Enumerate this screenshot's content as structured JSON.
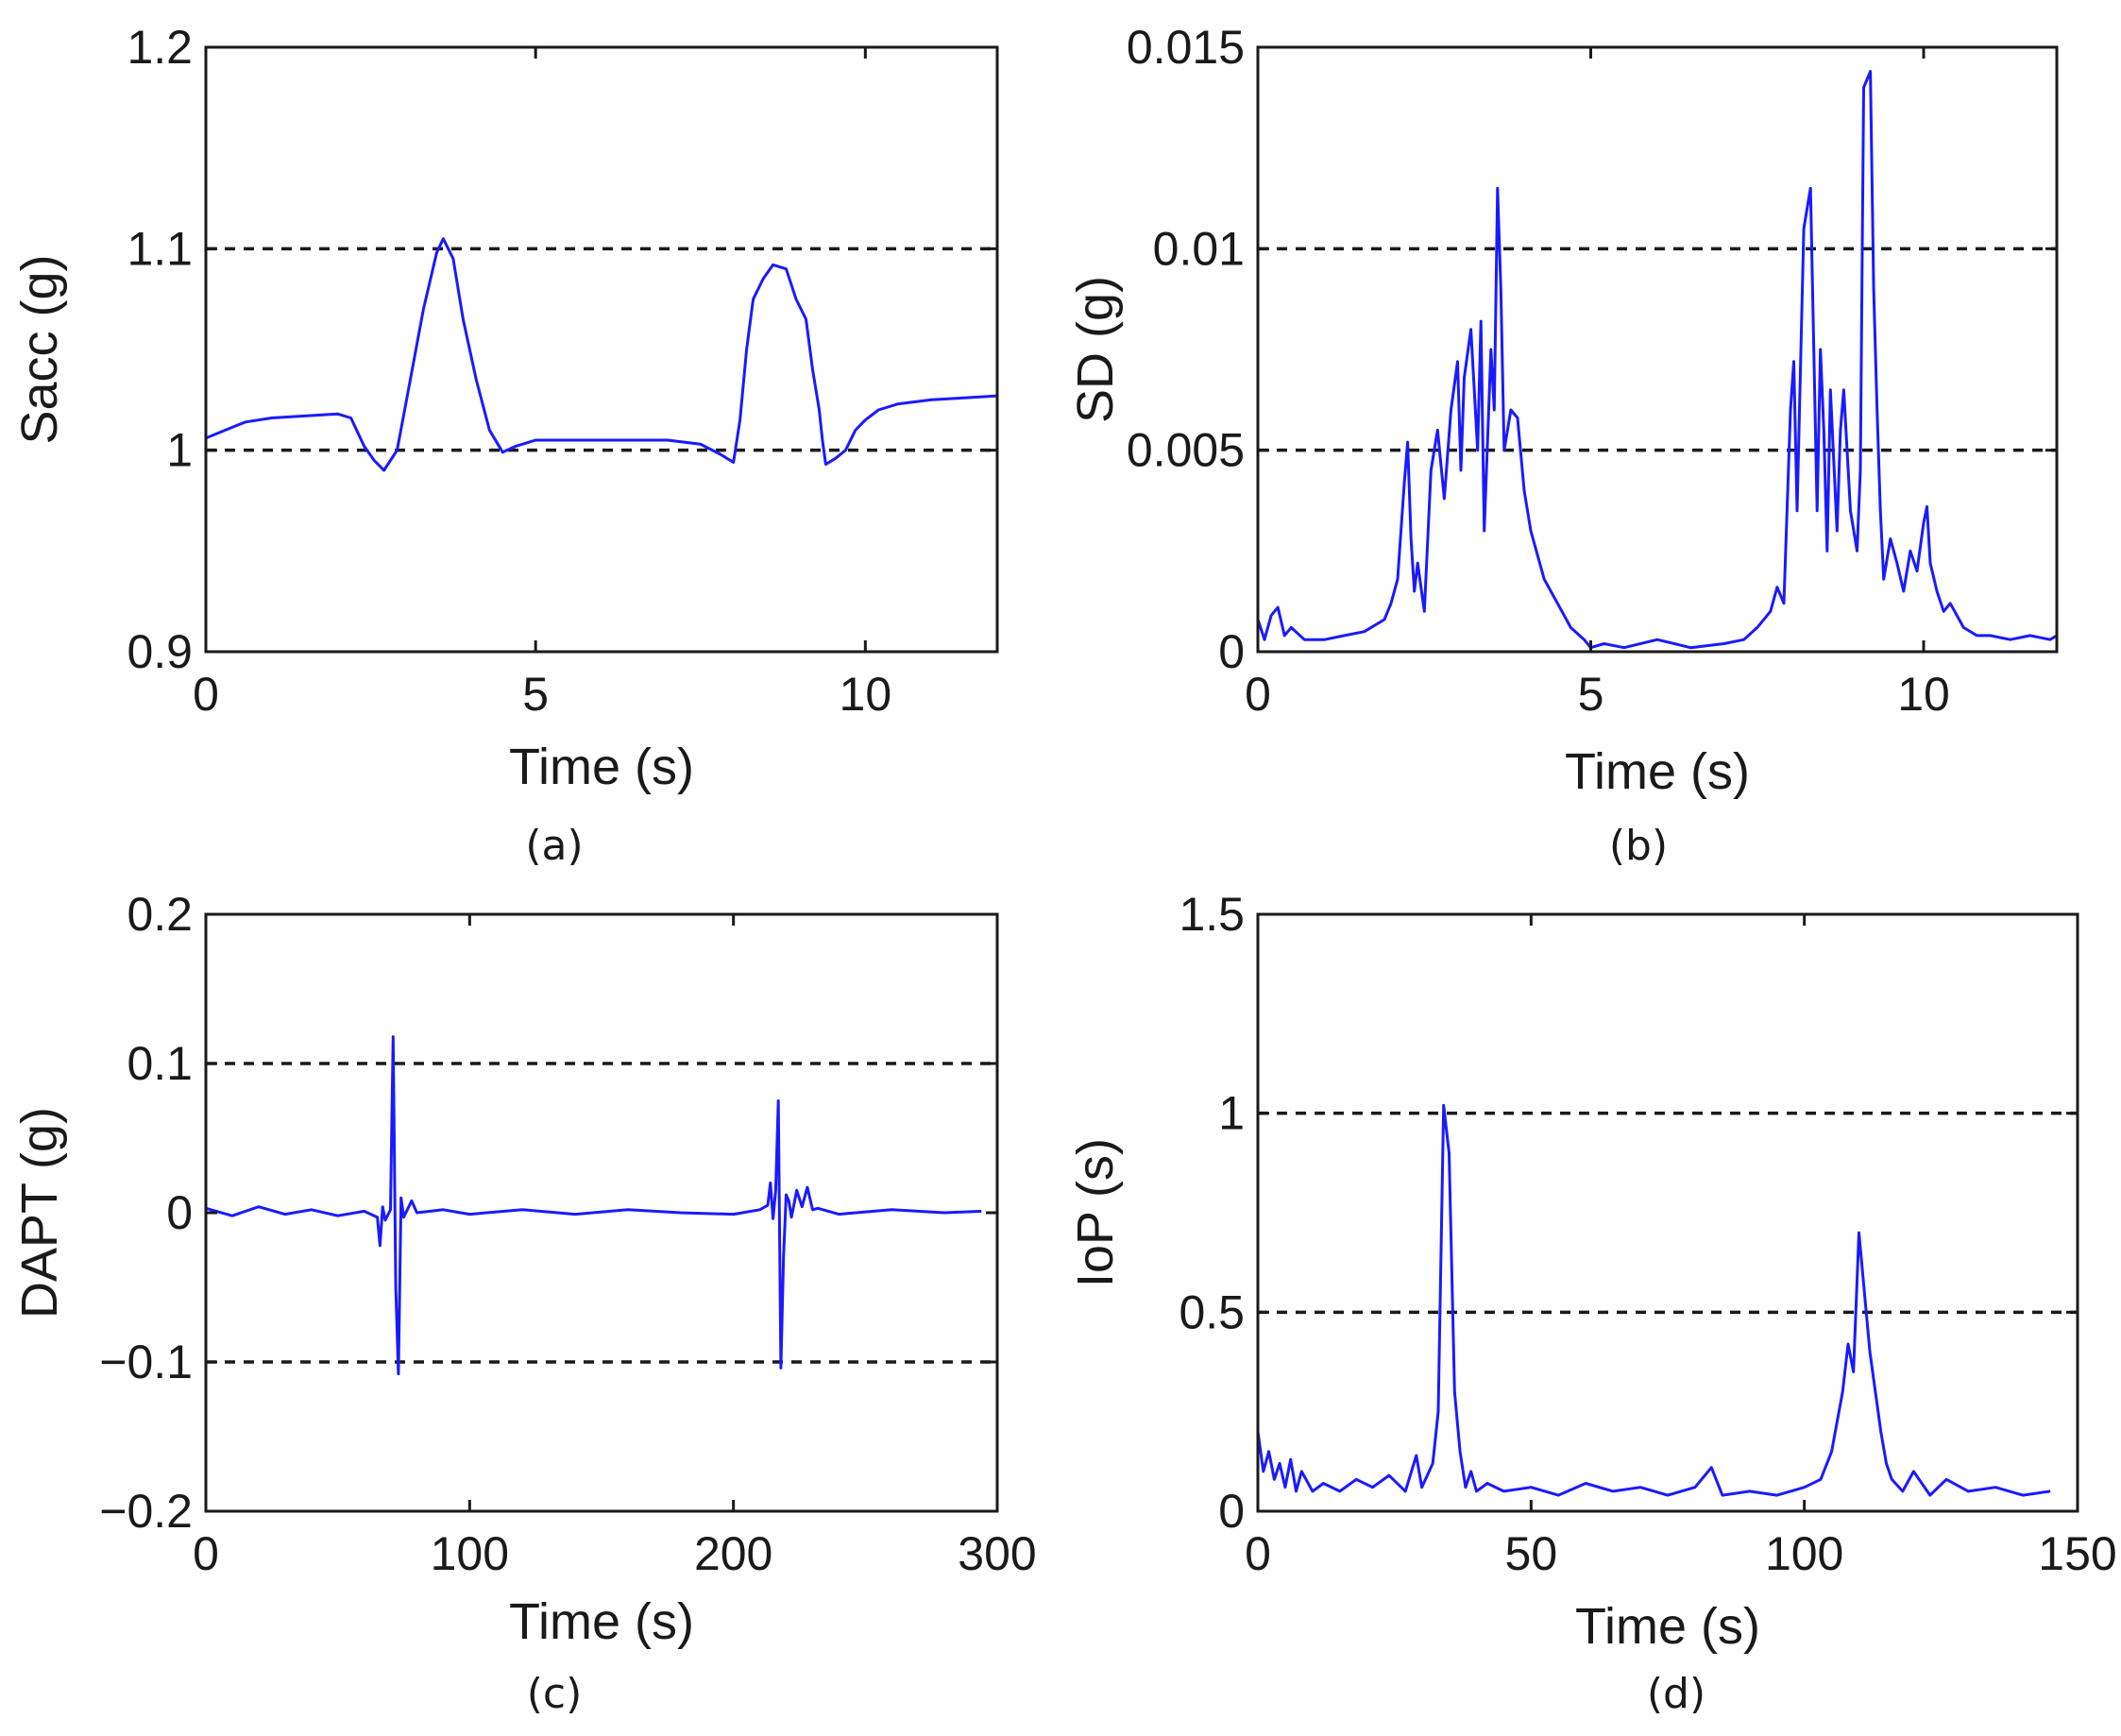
{
  "colors": {
    "line": "#1a1aff",
    "axis": "#1a1a1a",
    "threshold": "#1a1a1a"
  },
  "chart_data": [
    {
      "type": "line",
      "caption": "(a)",
      "xlabel": "Time (s)",
      "ylabel": "Sacc (g)",
      "xlim": [
        0,
        12
      ],
      "ylim": [
        0.9,
        1.2
      ],
      "xticks": [
        0,
        5,
        10
      ],
      "xtick_labels": [
        "0",
        "5",
        "10"
      ],
      "yticks": [
        0.9,
        1.0,
        1.1,
        1.2
      ],
      "ytick_labels": [
        "0.9",
        "1",
        "1.1",
        "1.2"
      ],
      "thresholds": [
        1.0,
        1.1
      ],
      "series": [
        {
          "name": "Sacc",
          "x": [
            0,
            0.3,
            0.6,
            1.0,
            1.5,
            2.0,
            2.2,
            2.4,
            2.55,
            2.7,
            2.9,
            3.1,
            3.3,
            3.5,
            3.6,
            3.75,
            3.9,
            4.1,
            4.3,
            4.5,
            4.7,
            5.0,
            5.5,
            6.0,
            6.5,
            7.0,
            7.5,
            7.8,
            8.0,
            8.1,
            8.2,
            8.3,
            8.45,
            8.6,
            8.8,
            8.95,
            9.1,
            9.2,
            9.3,
            9.35,
            9.4,
            9.55,
            9.7,
            9.85,
            10.0,
            10.2,
            10.5,
            11.0,
            11.5,
            12.0
          ],
          "y": [
            1.006,
            1.01,
            1.014,
            1.016,
            1.017,
            1.018,
            1.016,
            1.002,
            0.995,
            0.99,
            1.0,
            1.035,
            1.07,
            1.098,
            1.105,
            1.095,
            1.065,
            1.035,
            1.01,
            0.999,
            1.002,
            1.005,
            1.005,
            1.005,
            1.005,
            1.005,
            1.003,
            0.998,
            0.994,
            1.015,
            1.05,
            1.075,
            1.085,
            1.092,
            1.09,
            1.075,
            1.065,
            1.04,
            1.02,
            1.005,
            0.993,
            0.996,
            1.0,
            1.01,
            1.015,
            1.02,
            1.023,
            1.025,
            1.026,
            1.027
          ]
        }
      ]
    },
    {
      "type": "line",
      "caption": "(b)",
      "xlabel": "Time (s)",
      "ylabel": "SD (g)",
      "xlim": [
        0,
        12
      ],
      "ylim": [
        0,
        0.015
      ],
      "xticks": [
        0,
        5,
        10
      ],
      "xtick_labels": [
        "0",
        "5",
        "10"
      ],
      "yticks": [
        0,
        0.005,
        0.01,
        0.015
      ],
      "ytick_labels": [
        "0",
        "0.005",
        "0.01",
        "0.015"
      ],
      "thresholds": [
        0.005,
        0.01
      ],
      "series": [
        {
          "name": "SD",
          "x": [
            0,
            0.1,
            0.2,
            0.3,
            0.4,
            0.5,
            0.7,
            1.0,
            1.3,
            1.6,
            1.9,
            2.0,
            2.1,
            2.2,
            2.25,
            2.3,
            2.35,
            2.4,
            2.5,
            2.6,
            2.7,
            2.8,
            2.9,
            3.0,
            3.05,
            3.1,
            3.2,
            3.3,
            3.35,
            3.4,
            3.5,
            3.55,
            3.6,
            3.65,
            3.7,
            3.8,
            3.9,
            4.0,
            4.1,
            4.3,
            4.5,
            4.7,
            4.9,
            5.0,
            5.2,
            5.5,
            6.0,
            6.5,
            7.0,
            7.3,
            7.5,
            7.7,
            7.8,
            7.9,
            8.0,
            8.05,
            8.1,
            8.2,
            8.3,
            8.35,
            8.4,
            8.45,
            8.5,
            8.55,
            8.6,
            8.7,
            8.75,
            8.8,
            8.9,
            9.0,
            9.05,
            9.1,
            9.2,
            9.25,
            9.3,
            9.35,
            9.4,
            9.5,
            9.6,
            9.7,
            9.8,
            9.9,
            10.0,
            10.05,
            10.1,
            10.2,
            10.3,
            10.4,
            10.6,
            10.8,
            11.0,
            11.3,
            11.6,
            11.9,
            12.0
          ],
          "y": [
            0.0008,
            0.0003,
            0.0009,
            0.0011,
            0.0004,
            0.0006,
            0.0003,
            0.0003,
            0.0004,
            0.0005,
            0.0008,
            0.0012,
            0.0018,
            0.0042,
            0.0052,
            0.0028,
            0.0015,
            0.0022,
            0.001,
            0.0045,
            0.0055,
            0.0038,
            0.006,
            0.0072,
            0.0045,
            0.0068,
            0.008,
            0.005,
            0.0082,
            0.003,
            0.0075,
            0.006,
            0.0115,
            0.009,
            0.005,
            0.006,
            0.0058,
            0.004,
            0.003,
            0.0018,
            0.0012,
            0.0006,
            0.0003,
            0.0001,
            0.0002,
            0.0001,
            0.0003,
            0.0001,
            0.0002,
            0.0003,
            0.0006,
            0.001,
            0.0016,
            0.0012,
            0.006,
            0.0072,
            0.0035,
            0.0105,
            0.0115,
            0.0075,
            0.0035,
            0.0075,
            0.0055,
            0.0025,
            0.0065,
            0.003,
            0.0055,
            0.0065,
            0.0035,
            0.0025,
            0.0045,
            0.014,
            0.0144,
            0.009,
            0.006,
            0.0035,
            0.0018,
            0.0028,
            0.0022,
            0.0015,
            0.0025,
            0.002,
            0.0032,
            0.0036,
            0.0022,
            0.0015,
            0.001,
            0.0012,
            0.0006,
            0.0004,
            0.0004,
            0.0003,
            0.0004,
            0.0003,
            0.0004
          ]
        }
      ]
    },
    {
      "type": "line",
      "caption": "(c)",
      "xlabel": "Time (s)",
      "ylabel": "DAPT (g)",
      "xlim": [
        0,
        300
      ],
      "ylim": [
        -0.2,
        0.2
      ],
      "xticks": [
        0,
        100,
        200,
        300
      ],
      "xtick_labels": [
        "0",
        "100",
        "200",
        "300"
      ],
      "yticks": [
        -0.2,
        -0.1,
        0,
        0.1,
        0.2
      ],
      "ytick_labels": [
        "−0.2",
        "−0.1",
        "0",
        "0.1",
        "0.2"
      ],
      "thresholds": [
        -0.1,
        0.1
      ],
      "series": [
        {
          "name": "DAPT",
          "x": [
            0,
            10,
            20,
            30,
            40,
            50,
            60,
            65,
            66,
            67,
            68,
            70,
            71,
            72,
            73,
            74,
            75,
            78,
            80,
            90,
            100,
            120,
            140,
            160,
            180,
            200,
            210,
            213,
            214,
            215,
            216,
            217,
            218,
            219,
            220,
            221,
            222,
            224,
            226,
            228,
            230,
            232,
            240,
            260,
            280,
            294
          ],
          "y": [
            0.003,
            -0.002,
            0.004,
            -0.001,
            0.002,
            -0.002,
            0.001,
            -0.003,
            -0.022,
            0.004,
            -0.005,
            0.002,
            0.118,
            -0.05,
            -0.108,
            0.01,
            -0.003,
            0.008,
            0.0,
            0.002,
            -0.001,
            0.002,
            -0.001,
            0.002,
            0.0,
            -0.001,
            0.002,
            0.005,
            0.02,
            -0.004,
            0.015,
            0.075,
            -0.104,
            -0.03,
            0.012,
            0.008,
            -0.003,
            0.015,
            0.004,
            0.017,
            0.002,
            0.003,
            -0.001,
            0.002,
            0.0,
            0.001
          ]
        }
      ]
    },
    {
      "type": "line",
      "caption": "(d)",
      "xlabel": "Time (s)",
      "ylabel": "IoP (s)",
      "xlim": [
        0,
        150
      ],
      "ylim": [
        0,
        1.5
      ],
      "xticks": [
        0,
        50,
        100,
        150
      ],
      "xtick_labels": [
        "0",
        "50",
        "100",
        "150"
      ],
      "yticks": [
        0,
        0.5,
        1.0,
        1.5
      ],
      "ytick_labels": [
        "0",
        "0.5",
        "1",
        "1.5"
      ],
      "thresholds": [
        0.5,
        1.0
      ],
      "series": [
        {
          "name": "IoP",
          "x": [
            0,
            1,
            2,
            3,
            4,
            5,
            6,
            7,
            8,
            10,
            12,
            15,
            18,
            21,
            24,
            27,
            29,
            30,
            32,
            33,
            34,
            35,
            36,
            37,
            38,
            39,
            40,
            42,
            45,
            50,
            55,
            60,
            65,
            70,
            75,
            80,
            83,
            85,
            90,
            95,
            100,
            103,
            105,
            107,
            108,
            109,
            110,
            111,
            112,
            113,
            114,
            115,
            116,
            118,
            120,
            123,
            126,
            130,
            135,
            140,
            145
          ],
          "y": [
            0.2,
            0.1,
            0.15,
            0.08,
            0.12,
            0.06,
            0.13,
            0.05,
            0.1,
            0.05,
            0.07,
            0.05,
            0.08,
            0.06,
            0.09,
            0.05,
            0.14,
            0.06,
            0.12,
            0.25,
            1.02,
            0.9,
            0.3,
            0.15,
            0.06,
            0.1,
            0.05,
            0.07,
            0.05,
            0.06,
            0.04,
            0.07,
            0.05,
            0.06,
            0.04,
            0.06,
            0.11,
            0.04,
            0.05,
            0.04,
            0.06,
            0.08,
            0.15,
            0.3,
            0.42,
            0.35,
            0.7,
            0.55,
            0.4,
            0.3,
            0.2,
            0.12,
            0.08,
            0.05,
            0.1,
            0.04,
            0.08,
            0.05,
            0.06,
            0.04,
            0.05
          ]
        }
      ]
    }
  ]
}
